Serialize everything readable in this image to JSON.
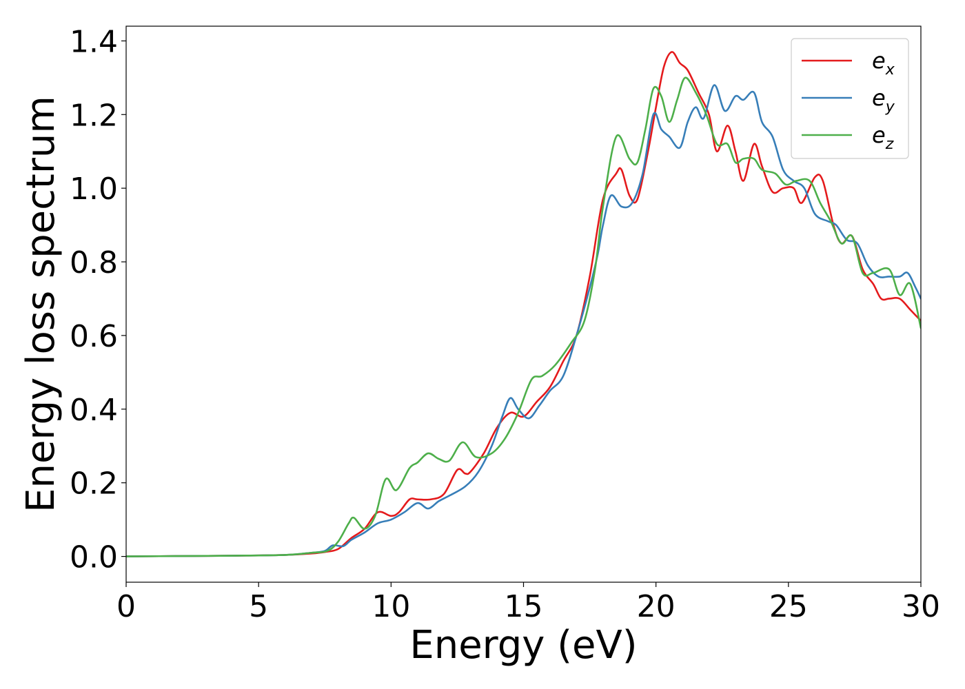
{
  "chart_data": {
    "type": "line",
    "title": "",
    "xlabel": "Energy (eV)",
    "ylabel": "Energy loss spectrum",
    "xlim": [
      0,
      30
    ],
    "ylim": [
      -0.07,
      1.44
    ],
    "xticks": [
      "0",
      "5",
      "10",
      "15",
      "20",
      "25",
      "30"
    ],
    "yticks": [
      "0.0",
      "0.2",
      "0.4",
      "0.6",
      "0.8",
      "1.0",
      "1.2",
      "1.4"
    ],
    "xtick_values": [
      0,
      5,
      10,
      15,
      20,
      25,
      30
    ],
    "ytick_values": [
      0.0,
      0.2,
      0.4,
      0.6,
      0.8,
      1.0,
      1.2,
      1.4
    ],
    "grid": false,
    "legend_position": "top-right",
    "series": [
      {
        "name_base": "e",
        "name_sub": "x",
        "color": "#e41a1c",
        "points": [
          [
            0,
            0
          ],
          [
            2,
            0.001
          ],
          [
            4,
            0.002
          ],
          [
            6,
            0.004
          ],
          [
            7,
            0.008
          ],
          [
            7.5,
            0.012
          ],
          [
            8,
            0.02
          ],
          [
            8.5,
            0.05
          ],
          [
            9,
            0.075
          ],
          [
            9.5,
            0.12
          ],
          [
            10,
            0.11
          ],
          [
            10.3,
            0.12
          ],
          [
            10.7,
            0.155
          ],
          [
            11,
            0.155
          ],
          [
            11.5,
            0.155
          ],
          [
            12,
            0.17
          ],
          [
            12.5,
            0.235
          ],
          [
            12.8,
            0.225
          ],
          [
            13,
            0.23
          ],
          [
            13.5,
            0.28
          ],
          [
            14,
            0.35
          ],
          [
            14.5,
            0.39
          ],
          [
            15,
            0.38
          ],
          [
            15.5,
            0.42
          ],
          [
            16,
            0.46
          ],
          [
            16.5,
            0.53
          ],
          [
            17,
            0.6
          ],
          [
            17.5,
            0.76
          ],
          [
            18,
            0.97
          ],
          [
            18.5,
            1.04
          ],
          [
            18.7,
            1.05
          ],
          [
            19,
            0.98
          ],
          [
            19.3,
            0.97
          ],
          [
            19.7,
            1.1
          ],
          [
            20,
            1.22
          ],
          [
            20.3,
            1.33
          ],
          [
            20.6,
            1.37
          ],
          [
            20.9,
            1.34
          ],
          [
            21.2,
            1.32
          ],
          [
            21.6,
            1.26
          ],
          [
            22,
            1.2
          ],
          [
            22.3,
            1.1
          ],
          [
            22.7,
            1.17
          ],
          [
            23,
            1.1
          ],
          [
            23.3,
            1.02
          ],
          [
            23.7,
            1.12
          ],
          [
            24,
            1.06
          ],
          [
            24.4,
            0.99
          ],
          [
            24.8,
            1.0
          ],
          [
            25.2,
            1.0
          ],
          [
            25.5,
            0.96
          ],
          [
            26,
            1.03
          ],
          [
            26.3,
            1.02
          ],
          [
            26.7,
            0.9
          ],
          [
            27,
            0.85
          ],
          [
            27.4,
            0.87
          ],
          [
            27.8,
            0.78
          ],
          [
            28.2,
            0.74
          ],
          [
            28.5,
            0.7
          ],
          [
            28.8,
            0.7
          ],
          [
            29.2,
            0.7
          ],
          [
            29.6,
            0.67
          ],
          [
            30,
            0.64
          ]
        ]
      },
      {
        "name_base": "e",
        "name_sub": "y",
        "color": "#377eb8",
        "points": [
          [
            0,
            0
          ],
          [
            2,
            0.001
          ],
          [
            4,
            0.002
          ],
          [
            6,
            0.004
          ],
          [
            7,
            0.01
          ],
          [
            7.5,
            0.015
          ],
          [
            7.8,
            0.03
          ],
          [
            8.2,
            0.028
          ],
          [
            8.5,
            0.045
          ],
          [
            9,
            0.065
          ],
          [
            9.5,
            0.09
          ],
          [
            10,
            0.1
          ],
          [
            10.5,
            0.12
          ],
          [
            11,
            0.145
          ],
          [
            11.4,
            0.13
          ],
          [
            11.8,
            0.15
          ],
          [
            12.2,
            0.165
          ],
          [
            12.8,
            0.19
          ],
          [
            13.3,
            0.23
          ],
          [
            13.8,
            0.3
          ],
          [
            14.2,
            0.38
          ],
          [
            14.5,
            0.43
          ],
          [
            14.8,
            0.4
          ],
          [
            15.2,
            0.375
          ],
          [
            15.6,
            0.41
          ],
          [
            16,
            0.45
          ],
          [
            16.5,
            0.49
          ],
          [
            17,
            0.6
          ],
          [
            17.5,
            0.73
          ],
          [
            17.8,
            0.82
          ],
          [
            18,
            0.9
          ],
          [
            18.3,
            0.98
          ],
          [
            18.7,
            0.95
          ],
          [
            19.1,
            0.96
          ],
          [
            19.5,
            1.04
          ],
          [
            19.9,
            1.2
          ],
          [
            20.2,
            1.16
          ],
          [
            20.5,
            1.14
          ],
          [
            20.9,
            1.11
          ],
          [
            21.2,
            1.18
          ],
          [
            21.5,
            1.22
          ],
          [
            21.8,
            1.19
          ],
          [
            22.2,
            1.28
          ],
          [
            22.6,
            1.21
          ],
          [
            23,
            1.25
          ],
          [
            23.3,
            1.24
          ],
          [
            23.7,
            1.26
          ],
          [
            24,
            1.18
          ],
          [
            24.4,
            1.14
          ],
          [
            24.8,
            1.05
          ],
          [
            25.2,
            1.02
          ],
          [
            25.6,
            1.0
          ],
          [
            26,
            0.93
          ],
          [
            26.5,
            0.91
          ],
          [
            26.8,
            0.9
          ],
          [
            27.2,
            0.86
          ],
          [
            27.6,
            0.85
          ],
          [
            28,
            0.79
          ],
          [
            28.4,
            0.76
          ],
          [
            28.8,
            0.76
          ],
          [
            29.2,
            0.76
          ],
          [
            29.5,
            0.77
          ],
          [
            29.8,
            0.73
          ],
          [
            30,
            0.7
          ]
        ]
      },
      {
        "name_base": "e",
        "name_sub": "z",
        "color": "#4daf4a",
        "points": [
          [
            0,
            0
          ],
          [
            2,
            0.001
          ],
          [
            4,
            0.002
          ],
          [
            6,
            0.004
          ],
          [
            7,
            0.01
          ],
          [
            7.6,
            0.015
          ],
          [
            8,
            0.04
          ],
          [
            8.4,
            0.09
          ],
          [
            8.6,
            0.105
          ],
          [
            9,
            0.075
          ],
          [
            9.4,
            0.11
          ],
          [
            9.8,
            0.21
          ],
          [
            10.2,
            0.18
          ],
          [
            10.7,
            0.24
          ],
          [
            11,
            0.255
          ],
          [
            11.4,
            0.28
          ],
          [
            11.8,
            0.265
          ],
          [
            12.2,
            0.26
          ],
          [
            12.7,
            0.31
          ],
          [
            13.2,
            0.27
          ],
          [
            13.8,
            0.28
          ],
          [
            14.3,
            0.32
          ],
          [
            14.8,
            0.39
          ],
          [
            15.3,
            0.48
          ],
          [
            15.7,
            0.49
          ],
          [
            16.2,
            0.52
          ],
          [
            16.8,
            0.58
          ],
          [
            17.3,
            0.64
          ],
          [
            17.7,
            0.78
          ],
          [
            18,
            0.95
          ],
          [
            18.5,
            1.14
          ],
          [
            19,
            1.08
          ],
          [
            19.3,
            1.07
          ],
          [
            19.6,
            1.16
          ],
          [
            19.9,
            1.27
          ],
          [
            20.2,
            1.25
          ],
          [
            20.5,
            1.18
          ],
          [
            20.8,
            1.24
          ],
          [
            21.1,
            1.3
          ],
          [
            21.5,
            1.26
          ],
          [
            21.9,
            1.2
          ],
          [
            22.3,
            1.12
          ],
          [
            22.7,
            1.12
          ],
          [
            23,
            1.07
          ],
          [
            23.3,
            1.08
          ],
          [
            23.7,
            1.08
          ],
          [
            24,
            1.05
          ],
          [
            24.5,
            1.04
          ],
          [
            24.9,
            1.01
          ],
          [
            25.3,
            1.02
          ],
          [
            25.8,
            1.02
          ],
          [
            26.2,
            0.96
          ],
          [
            26.6,
            0.91
          ],
          [
            27,
            0.85
          ],
          [
            27.4,
            0.87
          ],
          [
            27.8,
            0.77
          ],
          [
            28.2,
            0.77
          ],
          [
            28.8,
            0.78
          ],
          [
            29.2,
            0.71
          ],
          [
            29.6,
            0.74
          ],
          [
            30,
            0.62
          ]
        ]
      }
    ]
  }
}
